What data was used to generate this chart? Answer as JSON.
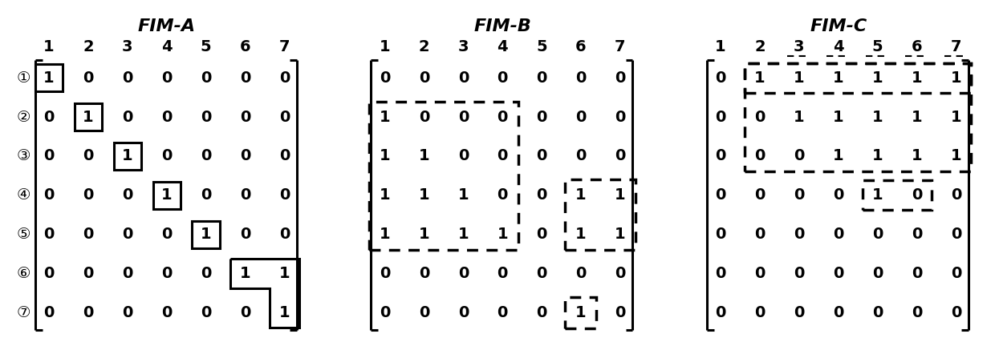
{
  "title_A": "FIM-A",
  "title_B": "FIM-B",
  "title_C": "FIM-C",
  "col_labels": [
    "1",
    "2",
    "3",
    "4",
    "5",
    "6",
    "7"
  ],
  "row_labels": [
    "①",
    "②",
    "③",
    "④",
    "⑤",
    "⑥",
    "⑦"
  ],
  "matrix_A": [
    [
      1,
      0,
      0,
      0,
      0,
      0,
      0
    ],
    [
      0,
      1,
      0,
      0,
      0,
      0,
      0
    ],
    [
      0,
      0,
      1,
      0,
      0,
      0,
      0
    ],
    [
      0,
      0,
      0,
      1,
      0,
      0,
      0
    ],
    [
      0,
      0,
      0,
      0,
      1,
      0,
      0
    ],
    [
      0,
      0,
      0,
      0,
      0,
      1,
      1
    ],
    [
      0,
      0,
      0,
      0,
      0,
      0,
      1
    ]
  ],
  "matrix_B": [
    [
      0,
      0,
      0,
      0,
      0,
      0,
      0
    ],
    [
      1,
      0,
      0,
      0,
      0,
      0,
      0
    ],
    [
      1,
      1,
      0,
      0,
      0,
      0,
      0
    ],
    [
      1,
      1,
      1,
      0,
      0,
      1,
      1
    ],
    [
      1,
      1,
      1,
      1,
      0,
      1,
      1
    ],
    [
      0,
      0,
      0,
      0,
      0,
      0,
      0
    ],
    [
      0,
      0,
      0,
      0,
      0,
      1,
      0
    ]
  ],
  "matrix_C": [
    [
      0,
      1,
      1,
      1,
      1,
      1,
      1
    ],
    [
      0,
      0,
      1,
      1,
      1,
      1,
      1
    ],
    [
      0,
      0,
      0,
      1,
      1,
      1,
      1
    ],
    [
      0,
      0,
      0,
      0,
      1,
      0,
      0
    ],
    [
      0,
      0,
      0,
      0,
      0,
      0,
      0
    ],
    [
      0,
      0,
      0,
      0,
      0,
      0,
      0
    ],
    [
      0,
      0,
      0,
      0,
      0,
      0,
      0
    ]
  ],
  "background": "#ffffff",
  "text_color": "#000000",
  "cell": 1.0,
  "fontsize_val": 14,
  "fontsize_label": 14,
  "fontsize_title": 16
}
